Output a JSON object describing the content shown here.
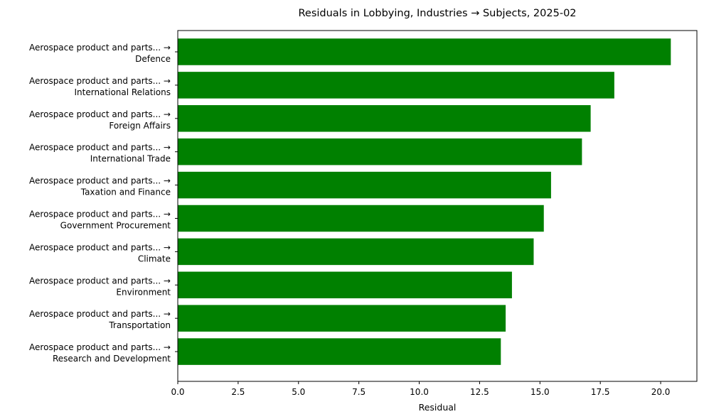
{
  "chart_data": {
    "type": "bar",
    "orientation": "horizontal",
    "title": "Residuals in Lobbying, Industries → Subjects, 2025-02",
    "xlabel": "Residual",
    "ylabel": "",
    "xlim": [
      0,
      21.5
    ],
    "xticks": [
      0.0,
      2.5,
      5.0,
      7.5,
      10.0,
      12.5,
      15.0,
      17.5,
      20.0
    ],
    "xtick_labels": [
      "0.0",
      "2.5",
      "5.0",
      "7.5",
      "10.0",
      "12.5",
      "15.0",
      "17.5",
      "20.0"
    ],
    "grid": false,
    "bar_color": "#008000",
    "categories": [
      [
        "Aerospace product and parts... →",
        "Defence"
      ],
      [
        "Aerospace product and parts... →",
        "International Relations"
      ],
      [
        "Aerospace product and parts... →",
        "Foreign Affairs"
      ],
      [
        "Aerospace product and parts... →",
        "International Trade"
      ],
      [
        "Aerospace product and parts... →",
        "Taxation and Finance"
      ],
      [
        "Aerospace product and parts... →",
        "Government Procurement"
      ],
      [
        "Aerospace product and parts... →",
        "Climate"
      ],
      [
        "Aerospace product and parts... →",
        "Environment"
      ],
      [
        "Aerospace product and parts... →",
        "Transportation"
      ],
      [
        "Aerospace product and parts... →",
        "Research and Development"
      ]
    ],
    "values": [
      20.42,
      18.08,
      17.1,
      16.74,
      15.46,
      15.16,
      14.74,
      13.84,
      13.58,
      13.38
    ]
  }
}
